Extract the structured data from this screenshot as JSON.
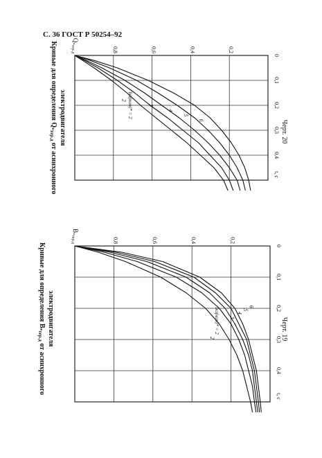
{
  "header": "С. 36  ГОСТ Р 50254–92",
  "chart_data": [
    {
      "type": "line",
      "title": "Кривые для определения B*тер.д от асинхронного электродвигателя",
      "title_line1": "Кривые для определения B",
      "title_sub": "*тер.д",
      "title_line1_tail": " от асинхронного",
      "title_line2": "электродвигателя",
      "caption": "Черт. 19",
      "ylabel": "B*тер.д",
      "ylabel_main": "B",
      "ylabel_sub": "*тер.д",
      "xlabel": "t, с",
      "xlim": [
        0,
        0.5
      ],
      "ylim": [
        0,
        1
      ],
      "x_ticks": [
        "0",
        "0,1",
        "0,2",
        "0,3",
        "0,4"
      ],
      "x_tick_values": [
        0,
        0.1,
        0.2,
        0.3,
        0.4
      ],
      "y_ticks": [
        "0,2",
        "0,4",
        "0,6",
        "0,8"
      ],
      "y_tick_values": [
        0.2,
        0.4,
        0.6,
        0.8
      ],
      "annotation": "Iкз(ном)* = 2",
      "grid": true,
      "series": [
        {
          "name": "2",
          "x": [
            0,
            0.02,
            0.05,
            0.1,
            0.15,
            0.2,
            0.25,
            0.3,
            0.35,
            0.4,
            0.45,
            0.5
          ],
          "values": [
            1.0,
            0.88,
            0.74,
            0.56,
            0.43,
            0.33,
            0.26,
            0.21,
            0.17,
            0.14,
            0.12,
            0.1
          ]
        },
        {
          "name": "3",
          "x": [
            0,
            0.02,
            0.05,
            0.1,
            0.15,
            0.2,
            0.25,
            0.3,
            0.35,
            0.4,
            0.45,
            0.5
          ],
          "values": [
            1.0,
            0.85,
            0.68,
            0.48,
            0.35,
            0.26,
            0.2,
            0.16,
            0.13,
            0.11,
            0.09,
            0.08
          ]
        },
        {
          "name": "4",
          "x": [
            0,
            0.02,
            0.05,
            0.1,
            0.15,
            0.2,
            0.25,
            0.3,
            0.35,
            0.4,
            0.45,
            0.5
          ],
          "values": [
            1.0,
            0.82,
            0.63,
            0.43,
            0.31,
            0.23,
            0.18,
            0.14,
            0.11,
            0.09,
            0.08,
            0.07
          ]
        },
        {
          "name": "5",
          "x": [
            0,
            0.02,
            0.05,
            0.1,
            0.15,
            0.2,
            0.25,
            0.3,
            0.35,
            0.4,
            0.45,
            0.5
          ],
          "values": [
            1.0,
            0.79,
            0.59,
            0.39,
            0.28,
            0.2,
            0.16,
            0.12,
            0.1,
            0.08,
            0.07,
            0.06
          ]
        },
        {
          "name": "6",
          "x": [
            0,
            0.02,
            0.05,
            0.1,
            0.15,
            0.2,
            0.25,
            0.3,
            0.35,
            0.4,
            0.45,
            0.5
          ],
          "values": [
            1.0,
            0.76,
            0.55,
            0.36,
            0.25,
            0.18,
            0.14,
            0.11,
            0.09,
            0.07,
            0.06,
            0.05
          ]
        }
      ]
    },
    {
      "type": "line",
      "title": "Кривые для определения Q*тер.д от асинхронного электродвигателя",
      "title_line1": "Кривые для определения Q",
      "title_sub": "*тер.д",
      "title_line1_tail": " от асинхронного",
      "title_line2": "электродвигателя",
      "caption": "Черт. 20",
      "ylabel": "Q*тер.д",
      "ylabel_main": "Q",
      "ylabel_sub": "*тер.д",
      "xlabel": "t, с",
      "xlim": [
        0,
        0.5
      ],
      "ylim": [
        0,
        1
      ],
      "x_ticks": [
        "0",
        "0,1",
        "0,2",
        "0,3",
        "0,4"
      ],
      "x_tick_values": [
        0,
        0.1,
        0.2,
        0.3,
        0.4
      ],
      "y_ticks": [
        "0,2",
        "0,4",
        "0,6",
        "0,8"
      ],
      "y_tick_values": [
        0.2,
        0.4,
        0.6,
        0.8
      ],
      "annotation": "Iкз(ном)* = 2",
      "grid": true,
      "series": [
        {
          "name": "2",
          "x": [
            0,
            0.02,
            0.05,
            0.1,
            0.15,
            0.2,
            0.25,
            0.3,
            0.35,
            0.4,
            0.45,
            0.5
          ],
          "values": [
            1.0,
            0.9,
            0.78,
            0.62,
            0.49,
            0.38,
            0.3,
            0.24,
            0.19,
            0.15,
            0.12,
            0.1
          ]
        },
        {
          "name": "3",
          "x": [
            0,
            0.02,
            0.05,
            0.1,
            0.15,
            0.2,
            0.25,
            0.3,
            0.35,
            0.4,
            0.45,
            0.5
          ],
          "values": [
            1.0,
            0.92,
            0.82,
            0.68,
            0.57,
            0.47,
            0.38,
            0.31,
            0.25,
            0.2,
            0.16,
            0.13
          ]
        },
        {
          "name": "4",
          "x": [
            0,
            0.02,
            0.05,
            0.1,
            0.15,
            0.2,
            0.25,
            0.3,
            0.35,
            0.4,
            0.45,
            0.5
          ],
          "values": [
            1.0,
            0.94,
            0.86,
            0.74,
            0.64,
            0.55,
            0.46,
            0.38,
            0.31,
            0.25,
            0.2,
            0.16
          ]
        },
        {
          "name": "5",
          "x": [
            0,
            0.02,
            0.05,
            0.1,
            0.15,
            0.2,
            0.25,
            0.3,
            0.35,
            0.4,
            0.45,
            0.5
          ],
          "values": [
            1.0,
            0.95,
            0.88,
            0.78,
            0.69,
            0.61,
            0.52,
            0.44,
            0.36,
            0.3,
            0.24,
            0.2
          ]
        },
        {
          "name": "6",
          "x": [
            0,
            0.02,
            0.05,
            0.1,
            0.15,
            0.2,
            0.25,
            0.3,
            0.35,
            0.4,
            0.45,
            0.5
          ],
          "values": [
            1.0,
            0.96,
            0.9,
            0.81,
            0.73,
            0.66,
            0.58,
            0.5,
            0.42,
            0.35,
            0.28,
            0.23
          ]
        }
      ]
    }
  ]
}
